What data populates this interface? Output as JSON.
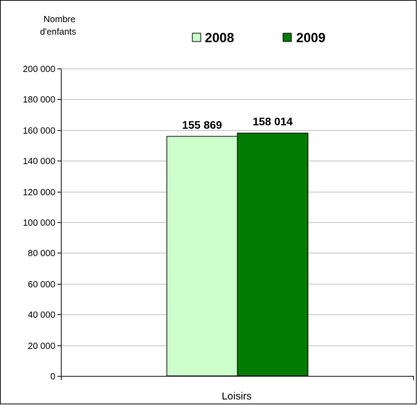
{
  "chart_data": {
    "type": "bar",
    "categories": [
      "Loisirs"
    ],
    "series": [
      {
        "name": "2008",
        "values": [
          155869
        ],
        "color": "#ccffcc",
        "data_label": "155 869"
      },
      {
        "name": "2009",
        "values": [
          158014
        ],
        "color": "#007a00",
        "data_label": "158 014"
      }
    ],
    "ylabel_lines": [
      "Nombre",
      "d'enfants"
    ],
    "ylim": [
      0,
      200000
    ],
    "yticks": [
      0,
      20000,
      40000,
      60000,
      80000,
      100000,
      120000,
      140000,
      160000,
      180000,
      200000
    ],
    "ytick_labels": [
      "0",
      "20 000",
      "40 000",
      "60 000",
      "80 000",
      "100 000",
      "120 000",
      "140 000",
      "160 000",
      "180 000",
      "200 000"
    ],
    "grid": true,
    "legend_position": "top"
  }
}
